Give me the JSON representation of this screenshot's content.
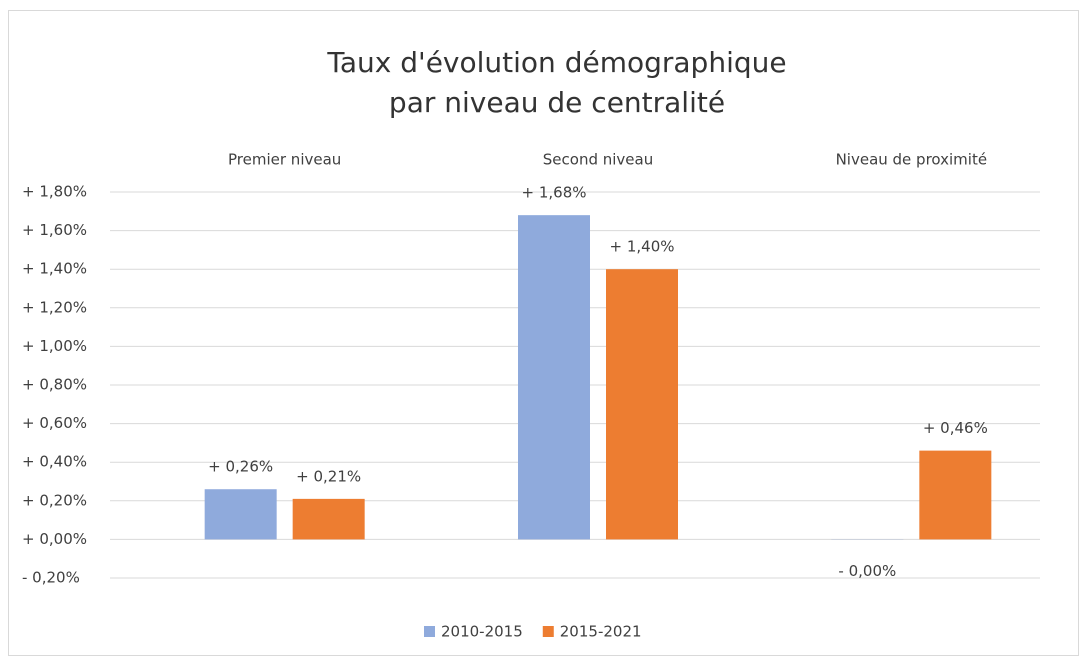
{
  "chart_data": {
    "type": "bar",
    "title": [
      "Taux d'évolution démographique",
      "par niveau de centralité"
    ],
    "categories": [
      "Premier niveau",
      "Second niveau",
      "Niveau de proximité"
    ],
    "series": [
      {
        "name": "2010-2015",
        "color": "#8faadc",
        "values": [
          0.26,
          1.68,
          -0.001
        ],
        "value_labels": [
          "+ 0,26%",
          "+ 1,68%",
          "- 0,00%"
        ]
      },
      {
        "name": "2015-2021",
        "color": "#ed7d31",
        "values": [
          0.21,
          1.4,
          0.46
        ],
        "value_labels": [
          "+ 0,21%",
          "+ 1,40%",
          "+ 0,46%"
        ]
      }
    ],
    "ylim": [
      -0.2,
      1.8
    ],
    "yticks": [
      {
        "value": -0.2,
        "label": "- 0,20%"
      },
      {
        "value": 0,
        "label": "+ 0,00%"
      },
      {
        "value": 0.2,
        "label": "+ 0,20%"
      },
      {
        "value": 0.4,
        "label": "+ 0,40%"
      },
      {
        "value": 0.6,
        "label": "+ 0,60%"
      },
      {
        "value": 0.8,
        "label": "+ 0,80%"
      },
      {
        "value": 1.0,
        "label": "+ 1,00%"
      },
      {
        "value": 1.2,
        "label": "+ 1,20%"
      },
      {
        "value": 1.4,
        "label": "+ 1,40%"
      },
      {
        "value": 1.6,
        "label": "+ 1,60%"
      },
      {
        "value": 1.8,
        "label": "+ 1,80%"
      }
    ],
    "grid": true
  }
}
